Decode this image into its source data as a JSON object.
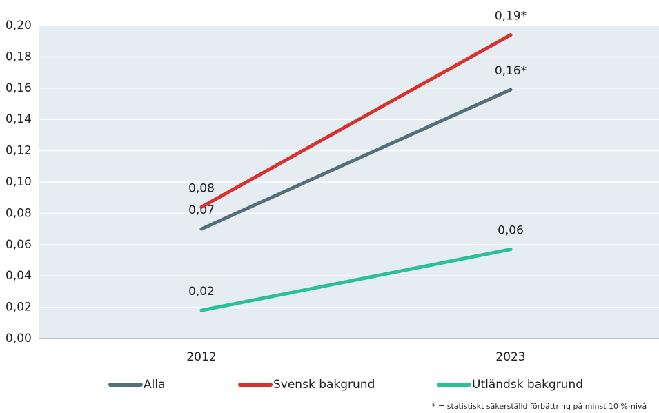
{
  "chart_data": {
    "type": "line",
    "categories": [
      "2012",
      "2023"
    ],
    "series": [
      {
        "name": "Alla",
        "color": "#546e7a",
        "values": [
          0.07,
          0.159
        ],
        "value_labels": [
          "0,07",
          "0,16*"
        ]
      },
      {
        "name": "Svensk bakgrund",
        "color": "#d8322f",
        "values": [
          0.084,
          0.194
        ],
        "value_labels": [
          "0,08",
          "0,19*"
        ]
      },
      {
        "name": "Utländsk bakgrund",
        "color": "#2bbf9a",
        "values": [
          0.018,
          0.057
        ],
        "value_labels": [
          "0,02",
          "0,06"
        ]
      }
    ],
    "ylim": [
      0,
      0.2
    ],
    "yticks": [
      {
        "value": 0,
        "label": "0,00"
      },
      {
        "value": 0.02,
        "label": "0,02"
      },
      {
        "value": 0.04,
        "label": "0,04"
      },
      {
        "value": 0.06,
        "label": "0,06"
      },
      {
        "value": 0.08,
        "label": "0,08"
      },
      {
        "value": 0.1,
        "label": "0,10"
      },
      {
        "value": 0.12,
        "label": "0,12"
      },
      {
        "value": 0.14,
        "label": "0,14"
      },
      {
        "value": 0.16,
        "label": "0,16"
      },
      {
        "value": 0.18,
        "label": "0,18"
      },
      {
        "value": 0.2,
        "label": "0,20"
      }
    ],
    "grid": true,
    "legend": "bottom",
    "note": "* = statistiskt säkerställd förbättring på minst 10 %-nivå"
  }
}
